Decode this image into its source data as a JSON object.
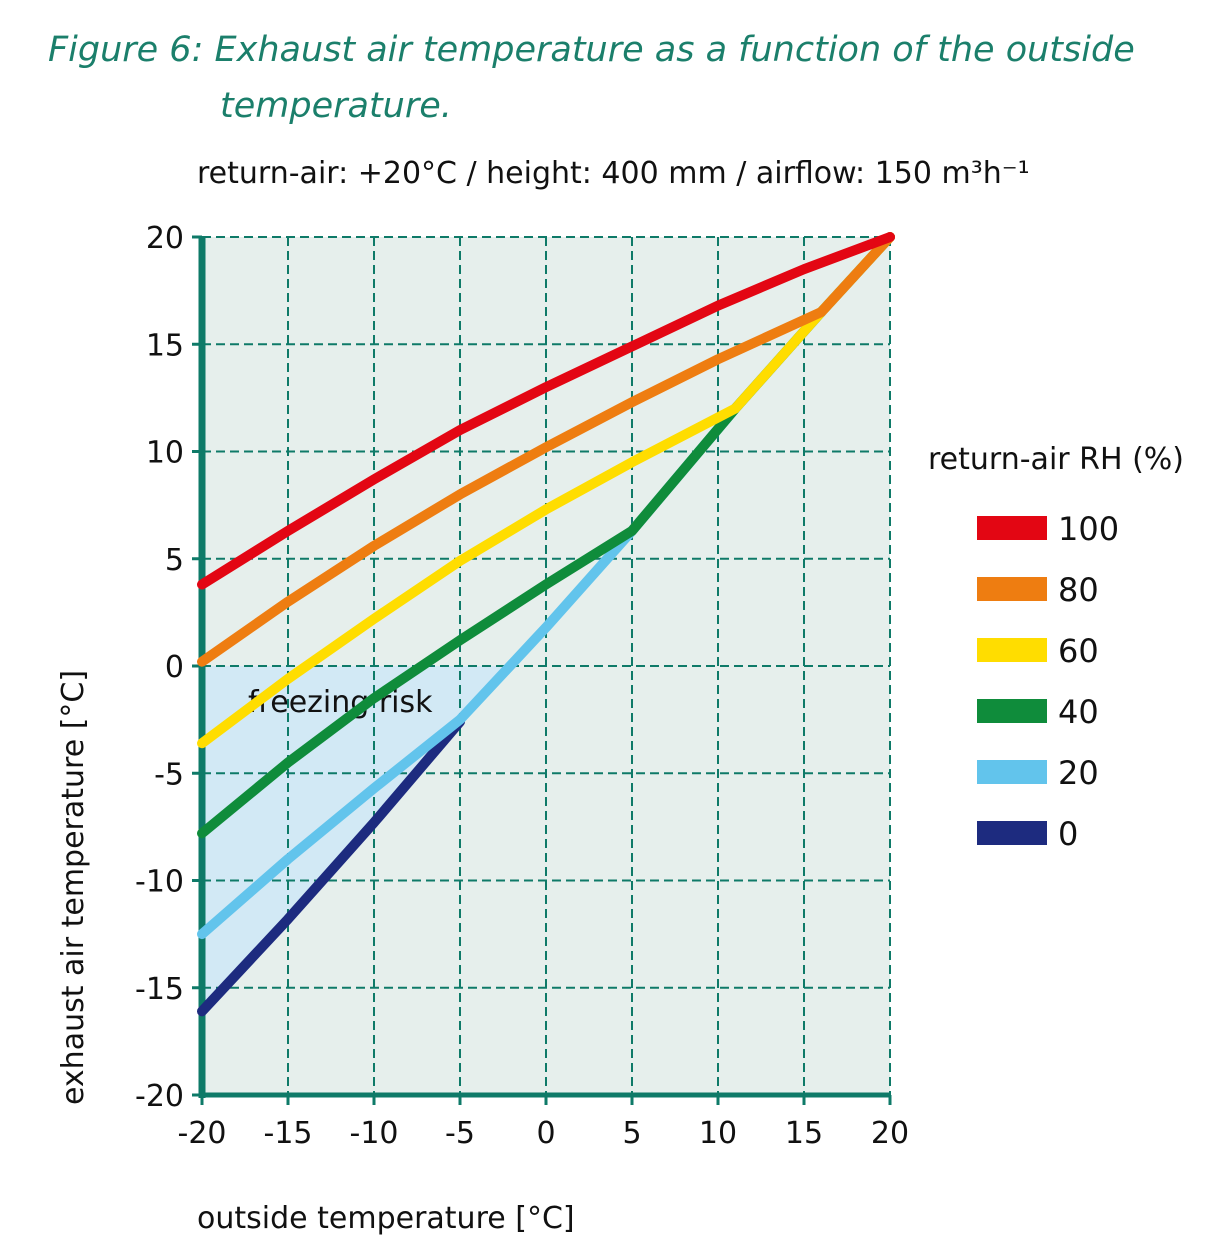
{
  "figure_title": "Figure 6: Exhaust air temperature as a function of the outside",
  "figure_title_line2": "temperature.",
  "subtitle": "return-air: +20°C / height: 400 mm / airflow: 150 m³h⁻¹",
  "chart_data": {
    "type": "line",
    "xlabel": "outside temperature [°C]",
    "ylabel": "exhaust air temperature [°C]",
    "xlim": [
      -20,
      20
    ],
    "ylim": [
      -20,
      20
    ],
    "xticks": [
      "-20",
      "-15",
      "-10",
      "-5",
      "0",
      "5",
      "10",
      "15",
      "20"
    ],
    "yticks": [
      "20",
      "15",
      "10",
      "5",
      "0",
      "-5",
      "-10",
      "-15",
      "-20"
    ],
    "grid": true,
    "legend_title": "return-air RH (%)",
    "legend_placement": "right",
    "annotation": "freezing risk",
    "plot_background": "#e6efec",
    "freezing_region_color": "#d2e9f5",
    "axis_color": "#0e7a68",
    "series": [
      {
        "name": "100",
        "color": "#e30613",
        "points": [
          [
            -20,
            3.8
          ],
          [
            -15,
            6.3
          ],
          [
            -10,
            8.7
          ],
          [
            -5,
            11
          ],
          [
            0,
            13
          ],
          [
            5,
            14.9
          ],
          [
            10,
            16.8
          ],
          [
            15,
            18.5
          ],
          [
            20,
            20
          ]
        ]
      },
      {
        "name": "80",
        "color": "#ee7d11",
        "points": [
          [
            -20,
            0.2
          ],
          [
            -15,
            3
          ],
          [
            -10,
            5.6
          ],
          [
            -5,
            8
          ],
          [
            0,
            10.2
          ],
          [
            5,
            12.3
          ],
          [
            10,
            14.3
          ],
          [
            16,
            16.5
          ],
          [
            20,
            20
          ]
        ]
      },
      {
        "name": "60",
        "color": "#ffdd00",
        "points": [
          [
            -20,
            -3.6
          ],
          [
            -15,
            -0.6
          ],
          [
            -10,
            2.2
          ],
          [
            -5,
            4.9
          ],
          [
            0,
            7.3
          ],
          [
            5,
            9.5
          ],
          [
            11,
            12
          ],
          [
            16,
            16.5
          ],
          [
            20,
            20
          ]
        ]
      },
      {
        "name": "40",
        "color": "#0f8c3b",
        "points": [
          [
            -20,
            -7.8
          ],
          [
            -15,
            -4.5
          ],
          [
            -10,
            -1.5
          ],
          [
            -5,
            1.2
          ],
          [
            0,
            3.8
          ],
          [
            5,
            6.3
          ],
          [
            11,
            12
          ],
          [
            16,
            16.5
          ],
          [
            20,
            20
          ]
        ]
      },
      {
        "name": "20",
        "color": "#62c4ec",
        "points": [
          [
            -20,
            -12.5
          ],
          [
            -15,
            -9
          ],
          [
            -10,
            -5.7
          ],
          [
            -5,
            -2.5
          ],
          [
            0,
            1.8
          ],
          [
            5,
            6.3
          ],
          [
            11,
            12
          ],
          [
            16,
            16.5
          ],
          [
            20,
            20
          ]
        ]
      },
      {
        "name": "0",
        "color": "#1d2b7f",
        "points": [
          [
            -20,
            -16.1
          ],
          [
            -15,
            -11.8
          ],
          [
            -10,
            -7.3
          ],
          [
            -5,
            -2.6
          ]
        ]
      }
    ]
  }
}
